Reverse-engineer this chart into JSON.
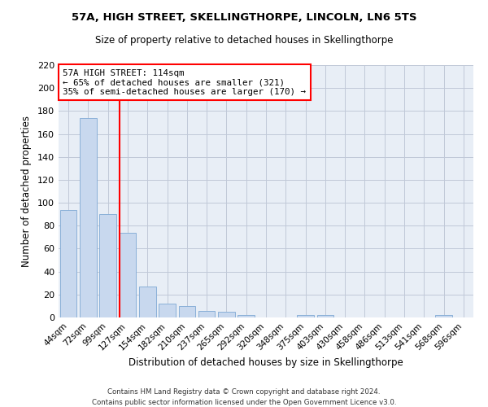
{
  "title": "57A, HIGH STREET, SKELLINGTHORPE, LINCOLN, LN6 5TS",
  "subtitle": "Size of property relative to detached houses in Skellingthorpe",
  "xlabel": "Distribution of detached houses by size in Skellingthorpe",
  "ylabel": "Number of detached properties",
  "bar_color": "#c8d8ee",
  "bar_edge_color": "#8ab0d8",
  "background_color": "#ffffff",
  "plot_bg_color": "#e8eef6",
  "grid_color": "#c0c8d8",
  "categories": [
    "44sqm",
    "72sqm",
    "99sqm",
    "127sqm",
    "154sqm",
    "182sqm",
    "210sqm",
    "237sqm",
    "265sqm",
    "292sqm",
    "320sqm",
    "348sqm",
    "375sqm",
    "403sqm",
    "430sqm",
    "458sqm",
    "486sqm",
    "513sqm",
    "541sqm",
    "568sqm",
    "596sqm"
  ],
  "values": [
    94,
    174,
    90,
    74,
    27,
    12,
    10,
    6,
    5,
    2,
    0,
    0,
    2,
    2,
    0,
    0,
    0,
    0,
    0,
    2,
    0
  ],
  "ylim": [
    0,
    220
  ],
  "yticks": [
    0,
    20,
    40,
    60,
    80,
    100,
    120,
    140,
    160,
    180,
    200,
    220
  ],
  "vline_position": 2.57,
  "marker_label": "57A HIGH STREET: 114sqm",
  "annotation_line1": "← 65% of detached houses are smaller (321)",
  "annotation_line2": "35% of semi-detached houses are larger (170) →",
  "footer1": "Contains HM Land Registry data © Crown copyright and database right 2024.",
  "footer2": "Contains public sector information licensed under the Open Government Licence v3.0."
}
